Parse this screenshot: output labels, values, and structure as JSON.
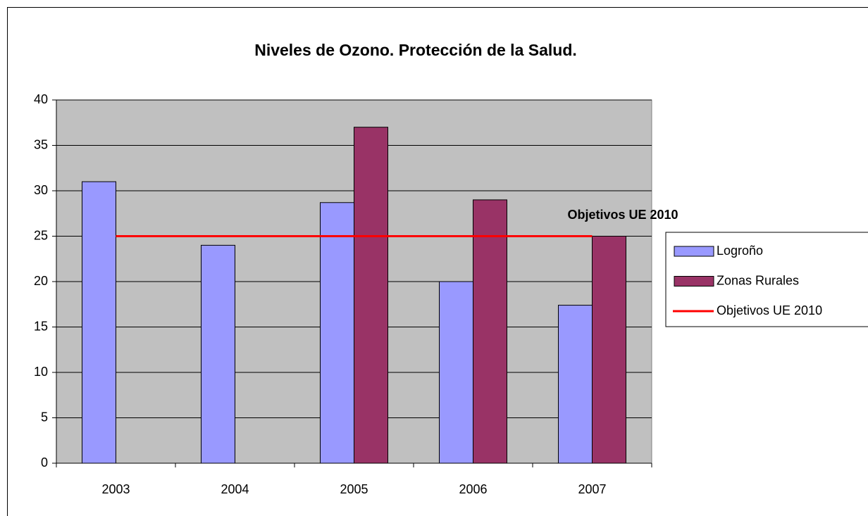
{
  "chart_data": {
    "type": "bar",
    "title": "Niveles de Ozono. Protección de la Salud.",
    "categories": [
      "2003",
      "2004",
      "2005",
      "2006",
      "2007"
    ],
    "series": [
      {
        "name": "Logroño",
        "color": "#9999ff",
        "values": [
          31,
          24,
          28.7,
          20,
          17.4
        ]
      },
      {
        "name": "Zonas Rurales",
        "color": "#993366",
        "values": [
          null,
          null,
          37,
          29,
          25
        ]
      },
      {
        "name": "Objetivos UE 2010",
        "color": "#ff0000",
        "type": "line",
        "values": [
          25,
          25,
          25,
          25,
          25
        ]
      }
    ],
    "annotation": "Objetivos UE 2010",
    "ylim": [
      0,
      40
    ],
    "yticks": [
      0,
      5,
      10,
      15,
      20,
      25,
      30,
      35,
      40
    ],
    "grid": true,
    "legend": "right",
    "plot_background": "#c0c0c0"
  }
}
